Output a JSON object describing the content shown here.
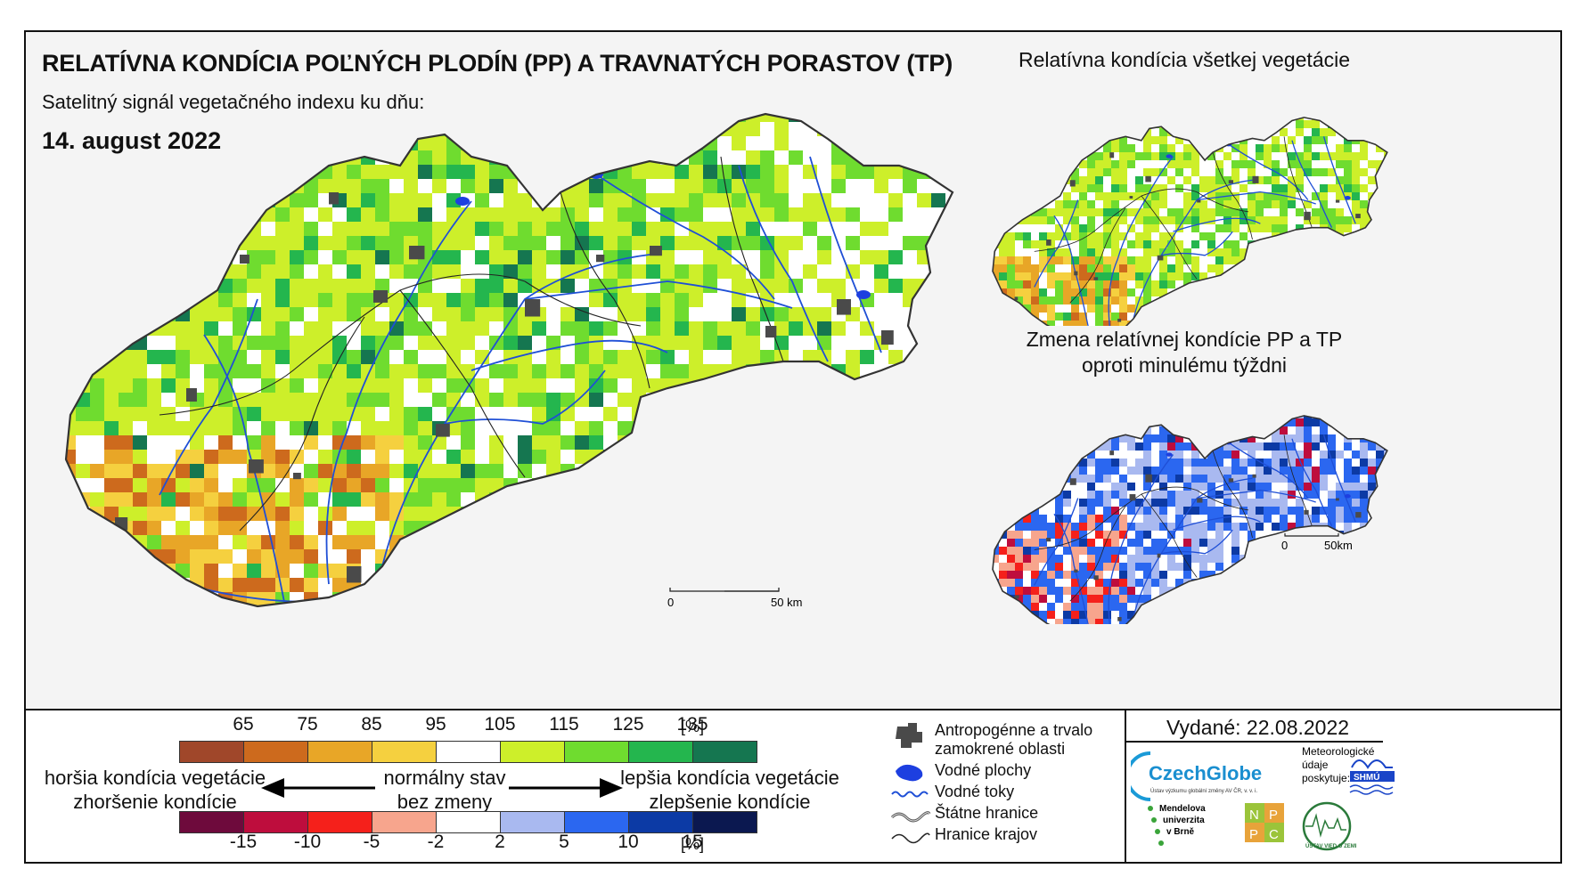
{
  "header": {
    "title": "RELATÍVNA KONDÍCIA POĽNÝCH PLODÍN (PP) A TRAVNATÝCH PORASTOV (TP)",
    "subtitle": "Satelitný signál vegetačného indexu ku dňu:",
    "date": "14. august 2022"
  },
  "inset_top": {
    "title": "Relatívna kondícia všetkej vegetácie"
  },
  "inset_bottom": {
    "title_line1": "Zmena relatívnej kondície PP a TP",
    "title_line2": "oproti minulému týždni"
  },
  "scalebars": {
    "main": {
      "start": "0",
      "end": "50 km"
    },
    "inset": {
      "start": "0",
      "end": "50km"
    }
  },
  "legend": {
    "condition_scale": {
      "labels": [
        "65",
        "75",
        "85",
        "95",
        "105",
        "115",
        "125",
        "135"
      ],
      "unit": "[%]",
      "colors": [
        "#a0472a",
        "#cd6a1d",
        "#e8a627",
        "#f5d03f",
        "#ffffff",
        "#cdef2a",
        "#6fdc2f",
        "#24b64e",
        "#157650"
      ]
    },
    "change_scale": {
      "labels": [
        "-15",
        "-10",
        "-5",
        "-2",
        "2",
        "5",
        "10",
        "15"
      ],
      "unit": "[%]",
      "colors": [
        "#6e0a3c",
        "#be0d3d",
        "#f5201b",
        "#f7a58d",
        "#ffffff",
        "#a9b9f0",
        "#2b67f0",
        "#0c3aa5",
        "#0b1850"
      ]
    },
    "left_text": {
      "line1": "horšia kondícia vegetácie",
      "line2": "zhoršenie kondície"
    },
    "center_text": {
      "line1": "normálny stav",
      "line2": "bez zmeny"
    },
    "right_text": {
      "line1": "lepšia kondícia vegetácie",
      "line2": "zlepšenie kondície"
    }
  },
  "key": {
    "urban": {
      "line1": "Antropogénne a trvalo",
      "line2": "zamokrené oblasti"
    },
    "water_bodies": "Vodné plochy",
    "rivers": "Vodné toky",
    "state_border": "Štátne hranice",
    "region_border": "Hranice krajov"
  },
  "issued": "Vydané: 22.08.2022",
  "logos": {
    "czechglobe": "CzechGlobe",
    "czechglobe_sub": "Ústav výzkumu globální změny AV ČR, v. v. i.",
    "meteo_line1": "Meteorologické",
    "meteo_line2": "údaje",
    "meteo_line3": "poskytuje:",
    "shmu": "SHMÚ",
    "mendel_line1": "Mendelova",
    "mendel_line2": "univerzita",
    "mendel_line3": "v Brně",
    "nppc": [
      "N",
      "P",
      "P",
      "C"
    ],
    "uvz": "ÚSTAV VIED O ZEMI"
  },
  "colors": {
    "border": "#333333",
    "river": "#1f4fd6",
    "urban": "#4a4a4a"
  }
}
